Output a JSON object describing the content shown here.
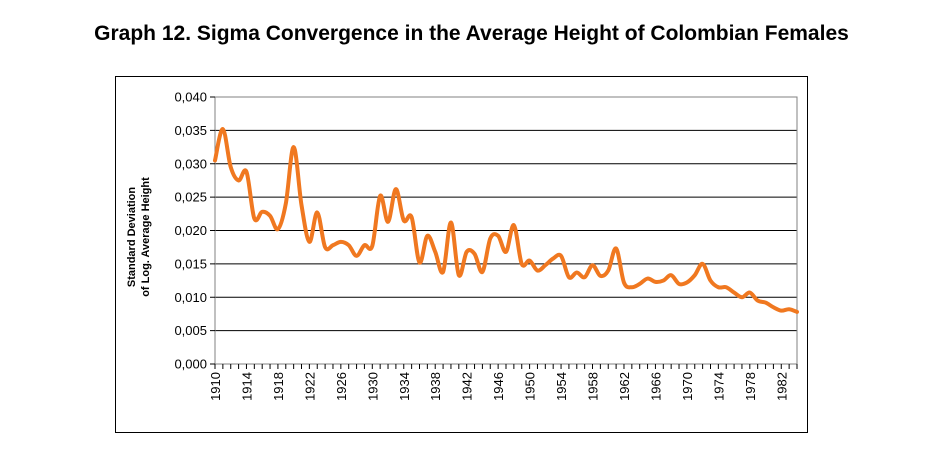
{
  "chart_data": {
    "type": "line",
    "title": "Graph 12. Sigma Convergence in the Average Height of Colombian Females",
    "xlabel": "",
    "ylabel": [
      "Standard Deviation",
      "of Log. Average Height"
    ],
    "ylim": [
      0,
      0.04
    ],
    "xlim": [
      1910,
      1984
    ],
    "yticks": [
      0,
      0.005,
      0.01,
      0.015,
      0.02,
      0.025,
      0.03,
      0.035,
      0.04
    ],
    "ytick_labels": [
      "0,000",
      "0,005",
      "0,010",
      "0,015",
      "0,020",
      "0,025",
      "0,030",
      "0,035",
      "0,040"
    ],
    "xticks": [
      1910,
      1914,
      1918,
      1922,
      1926,
      1930,
      1934,
      1938,
      1942,
      1946,
      1950,
      1954,
      1958,
      1962,
      1966,
      1970,
      1974,
      1978,
      1982
    ],
    "xtick_labels": [
      "1910",
      "1914",
      "1918",
      "1922",
      "1926",
      "1930",
      "1934",
      "1938",
      "1942",
      "1946",
      "1950",
      "1954",
      "1958",
      "1962",
      "1966",
      "1970",
      "1974",
      "1978",
      "1982"
    ],
    "grid": true,
    "series": [
      {
        "name": "Standard Deviation of Log. Average Height",
        "color": "#f07820",
        "x": [
          1910,
          1911,
          1912,
          1913,
          1914,
          1915,
          1916,
          1917,
          1918,
          1919,
          1920,
          1921,
          1922,
          1923,
          1924,
          1925,
          1926,
          1927,
          1928,
          1929,
          1930,
          1931,
          1932,
          1933,
          1934,
          1935,
          1936,
          1937,
          1938,
          1939,
          1940,
          1941,
          1942,
          1943,
          1944,
          1945,
          1946,
          1947,
          1948,
          1949,
          1950,
          1951,
          1952,
          1953,
          1954,
          1955,
          1956,
          1957,
          1958,
          1959,
          1960,
          1961,
          1962,
          1963,
          1964,
          1965,
          1966,
          1967,
          1968,
          1969,
          1970,
          1971,
          1972,
          1973,
          1974,
          1975,
          1976,
          1977,
          1978,
          1979,
          1980,
          1981,
          1982,
          1983,
          1984
        ],
        "values": [
          0.0305,
          0.0352,
          0.0295,
          0.0275,
          0.0288,
          0.0218,
          0.0228,
          0.0222,
          0.0202,
          0.024,
          0.0325,
          0.0238,
          0.0183,
          0.0227,
          0.0175,
          0.0178,
          0.0183,
          0.0178,
          0.0162,
          0.0178,
          0.0177,
          0.0252,
          0.0213,
          0.0262,
          0.0215,
          0.022,
          0.0152,
          0.0192,
          0.0168,
          0.0138,
          0.0212,
          0.0133,
          0.0168,
          0.0165,
          0.0138,
          0.0188,
          0.0192,
          0.0168,
          0.0208,
          0.015,
          0.0155,
          0.014,
          0.0148,
          0.0158,
          0.0162,
          0.013,
          0.0137,
          0.013,
          0.0148,
          0.0132,
          0.014,
          0.0173,
          0.0122,
          0.0115,
          0.012,
          0.0128,
          0.0123,
          0.0125,
          0.0133,
          0.012,
          0.0122,
          0.0133,
          0.015,
          0.0125,
          0.0115,
          0.0115,
          0.0107,
          0.01,
          0.0107,
          0.0095,
          0.0092,
          0.0085,
          0.008,
          0.0082,
          0.0078
        ]
      }
    ]
  }
}
